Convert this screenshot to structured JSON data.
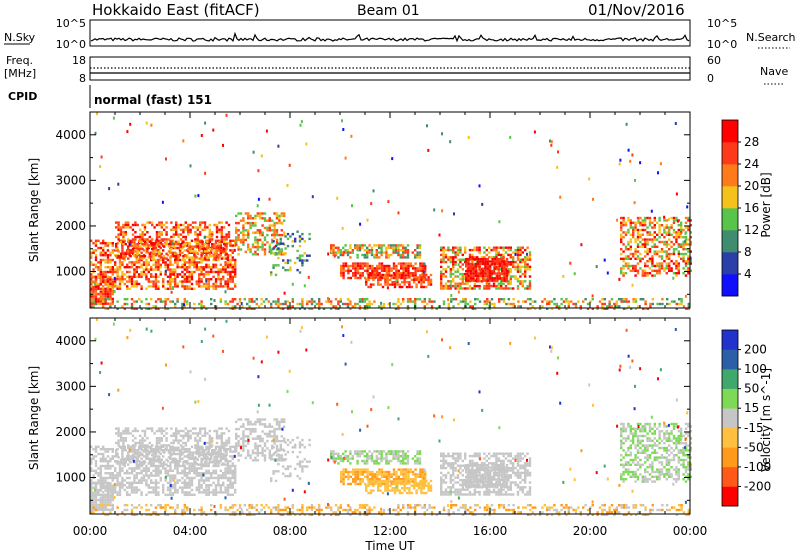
{
  "header": {
    "title": "Hokkaido East (fitACF)",
    "beam": "Beam 01",
    "date": "01/Nov/2016"
  },
  "nsky_panel": {
    "left_label": "N.Sky",
    "right_label": "N.Search",
    "left_ticks": [
      "10^5",
      "10^0"
    ],
    "right_ticks": [
      "10^5",
      "10^0"
    ]
  },
  "freq_panel": {
    "left_label_line1": "Freq.",
    "left_label_line2": "[MHz]",
    "left_ticks": [
      "18",
      "8"
    ],
    "right_label": "Nave",
    "right_ticks": [
      "60",
      "0"
    ]
  },
  "cpid_panel": {
    "label": "CPID",
    "mode_text": "normal (fast) 151"
  },
  "colors": {
    "power_scale": [
      "#1010ff",
      "#2b3fa8",
      "#3f8c6e",
      "#58c54a",
      "#f4c21a",
      "#ff7a1a",
      "#ff3a1a",
      "#ff0000"
    ],
    "velocity_scale": [
      "#ff0000",
      "#ff5a1a",
      "#ff9a1a",
      "#ffc040",
      "#c6c6c6",
      "#7ed957",
      "#3fa86b",
      "#2b5fa8",
      "#2233cc"
    ]
  },
  "chart_data": [
    {
      "type": "heatmap",
      "name": "power",
      "xlabel": "",
      "ylabel": "Slant Range [km]",
      "xlim": [
        0,
        24
      ],
      "ylim": [
        200,
        4500
      ],
      "y_ticks": [
        "1000",
        "2000",
        "3000",
        "4000"
      ],
      "colorbar": {
        "label": "Power [dB]",
        "range": [
          0,
          32
        ],
        "ticks": [
          "4",
          "8",
          "12",
          "16",
          "20",
          "24",
          "28"
        ]
      }
    },
    {
      "type": "heatmap",
      "name": "velocity",
      "xlabel": "Time UT",
      "ylabel": "Slant Range [km]",
      "xlim": [
        0,
        24
      ],
      "ylim": [
        200,
        4500
      ],
      "x_ticks": [
        "00:00",
        "04:00",
        "08:00",
        "12:00",
        "16:00",
        "20:00",
        "00:00"
      ],
      "y_ticks": [
        "1000",
        "2000",
        "3000",
        "4000"
      ],
      "colorbar": {
        "label": "Velocity [m s^-1]",
        "range": [
          -300,
          300
        ],
        "ticks": [
          "-200",
          "-100",
          "-50",
          "-15",
          "15",
          "50",
          "100",
          "200"
        ]
      }
    }
  ]
}
